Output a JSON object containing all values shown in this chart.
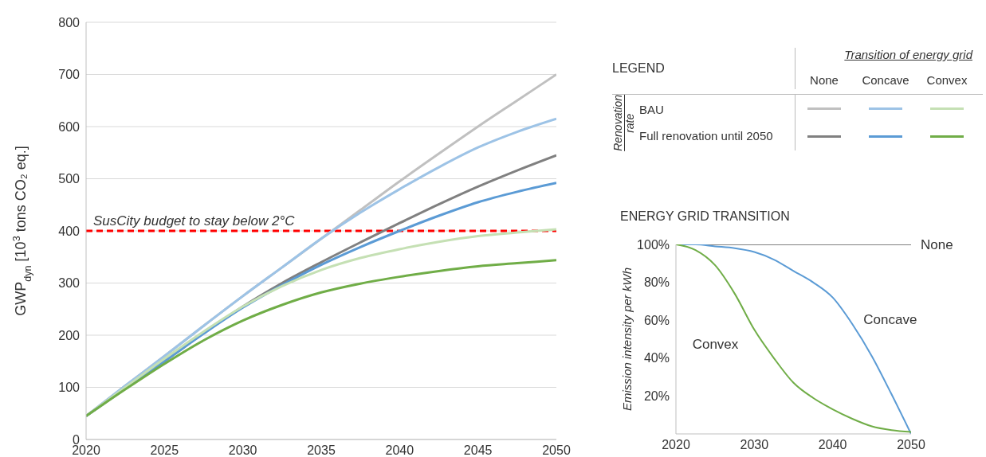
{
  "chart_data": [
    {
      "type": "line",
      "ylabel": "GWP$_{dyn}$ [10$^{3}$ tons CO₂ eq.]",
      "x": [
        2020,
        2022.5,
        2025,
        2027.5,
        2030,
        2032.5,
        2035,
        2037.5,
        2040,
        2042.5,
        2045,
        2047.5,
        2050
      ],
      "series": [
        {
          "color": "#c0c0c0",
          "values": [
            45,
            103,
            160,
            218,
            275,
            330,
            385,
            440,
            495,
            548,
            600,
            650,
            700
          ]
        },
        {
          "color": "#9dc3e6",
          "values": [
            45,
            103,
            160,
            218,
            275,
            330,
            385,
            435,
            480,
            522,
            560,
            590,
            615
          ]
        },
        {
          "color": "#808080",
          "values": [
            45,
            98,
            150,
            204,
            255,
            300,
            340,
            378,
            415,
            451,
            485,
            516,
            545
          ]
        },
        {
          "color": "#5b9bd5",
          "values": [
            45,
            98,
            150,
            203,
            253,
            296,
            335,
            369,
            400,
            429,
            455,
            475,
            492
          ]
        },
        {
          "color": "#c5e0b4",
          "values": [
            45,
            100,
            155,
            207,
            255,
            294,
            325,
            348,
            365,
            379,
            390,
            397,
            403
          ]
        },
        {
          "color": "#70ad47",
          "values": [
            45,
            96,
            145,
            190,
            228,
            258,
            282,
            299,
            312,
            323,
            332,
            338,
            344
          ]
        }
      ],
      "xlim": [
        2020,
        2050
      ],
      "xticks": [
        2020,
        2025,
        2030,
        2035,
        2040,
        2045,
        2050
      ],
      "ylim": [
        0,
        800
      ],
      "yticks": [
        0,
        100,
        200,
        300,
        400,
        500,
        600,
        700,
        800
      ],
      "grid": "y",
      "line_style": "solid",
      "marker": "none",
      "ref_lines": [
        {
          "axis": "y",
          "value": 400,
          "label": "SusCity budget to stay below 2°C",
          "color": "#ff0000",
          "line_style": "dashed"
        }
      ]
    },
    {
      "type": "line",
      "title": "ENERGY GRID TRANSITION",
      "ylabel": "Emission intensity per kWh",
      "x": [
        2020,
        2022.5,
        2025,
        2027.5,
        2030,
        2032.5,
        2035,
        2037.5,
        2040,
        2042.5,
        2045,
        2047.5,
        2050
      ],
      "series": [
        {
          "name": "None",
          "color": "#7f7f7f",
          "values": [
            100,
            100,
            100,
            100,
            100,
            100,
            100,
            100,
            100,
            100,
            100,
            100,
            100
          ]
        },
        {
          "name": "Concave",
          "color": "#5b9bd5",
          "values": [
            100,
            100,
            99,
            98,
            96,
            92,
            86,
            80,
            72,
            58,
            41,
            21,
            0
          ]
        },
        {
          "name": "Convex",
          "color": "#70ad47",
          "values": [
            100,
            97,
            89,
            74,
            55,
            40,
            27,
            19,
            13,
            8,
            4,
            2,
            1
          ]
        }
      ],
      "xlim": [
        2020,
        2050
      ],
      "xticks": [
        2020,
        2030,
        2040,
        2050
      ],
      "ylim": [
        0,
        100
      ],
      "yticks": [
        {
          "value": 0,
          "label": null
        },
        {
          "value": 20,
          "label": "20%"
        },
        {
          "value": 40,
          "label": "40%"
        },
        {
          "value": 60,
          "label": "60%"
        },
        {
          "value": 80,
          "label": "80%"
        },
        {
          "value": 100,
          "label": "100%"
        }
      ],
      "grid": false,
      "line_style": "solid",
      "marker": "none"
    },
    {
      "type": "other",
      "title": "LEGEND",
      "annotations": [
        "Transition of energy grid",
        "None",
        "Concave",
        "Convex",
        "Renovation",
        "rate",
        "BAU",
        "Full renovation until 2050"
      ]
    }
  ]
}
